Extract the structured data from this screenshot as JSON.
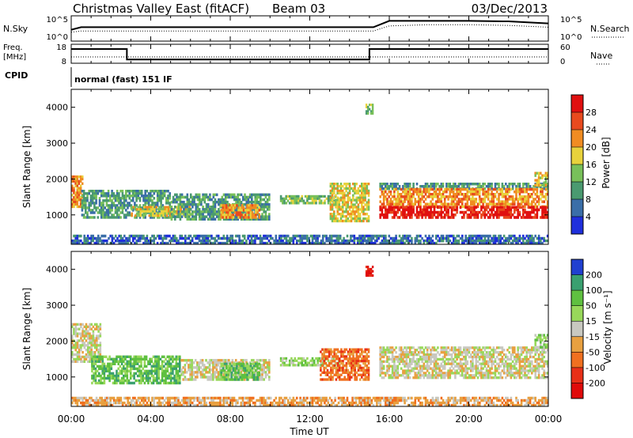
{
  "header": {
    "title": "Christmas Valley East (fitACF)",
    "beam": "Beam 03",
    "date": "03/Dec/2013"
  },
  "labels": {
    "nsky": "N.Sky",
    "nsearch": "N.Search",
    "freq_line1": "Freq.",
    "freq_line2": "[MHz]",
    "nave": "Nave",
    "cpid": "CPID",
    "cpid_value": "normal (fast) 151 IF",
    "xlabel": "Time UT"
  },
  "ticks": {
    "x": [
      "00:00",
      "04:00",
      "08:00",
      "12:00",
      "16:00",
      "20:00",
      "00:00"
    ],
    "noise_left": [
      "10^5",
      "10^0"
    ],
    "noise_right": [
      "10^5",
      "10^0"
    ],
    "freq_left": [
      "18",
      "8"
    ],
    "freq_right": [
      "60",
      "0"
    ],
    "range": [
      "1000",
      "2000",
      "3000",
      "4000"
    ]
  },
  "chart_data": [
    {
      "type": "line",
      "name": "noise",
      "x_hours": [
        0,
        0.5,
        3,
        6,
        9,
        12,
        14,
        15.2,
        16,
        18,
        20,
        22,
        24
      ],
      "nsky_level": [
        0.45,
        0.55,
        0.55,
        0.55,
        0.55,
        0.55,
        0.55,
        0.55,
        0.8,
        0.8,
        0.8,
        0.78,
        0.7
      ],
      "nsearch_level": [
        0.35,
        0.4,
        0.4,
        0.4,
        0.4,
        0.4,
        0.4,
        0.4,
        0.6,
        0.65,
        0.65,
        0.62,
        0.55
      ]
    },
    {
      "type": "line",
      "name": "frequency",
      "x_hours": [
        0,
        2.8,
        2.8,
        15,
        15,
        24
      ],
      "freq_mhz": [
        15.5,
        15.5,
        10,
        10,
        15.5,
        15.5
      ],
      "nave": [
        20,
        20,
        20,
        20,
        20,
        20
      ]
    },
    {
      "type": "heatmap",
      "panel": "power",
      "ylabel": "Slant Range [km]",
      "ylim": [
        180,
        4500
      ],
      "xlim": [
        0,
        24
      ],
      "colorbar_label": "Power [dB]",
      "colorbar_ticks": [
        "4",
        "8",
        "12",
        "16",
        "20",
        "24",
        "28"
      ],
      "colors": [
        "#1f2fdc",
        "#3a6ea8",
        "#4a9a70",
        "#78c05a",
        "#e8d23c",
        "#f08c22",
        "#e84a1e",
        "#e01010"
      ],
      "regions": [
        {
          "x0": 0,
          "x1": 0.6,
          "r0": 1200,
          "r1": 2100,
          "level": 5
        },
        {
          "x0": 0.5,
          "x1": 5,
          "r0": 900,
          "r1": 1700,
          "level": 2
        },
        {
          "x0": 3,
          "x1": 6,
          "r0": 950,
          "r1": 1250,
          "level": 4
        },
        {
          "x0": 5,
          "x1": 10,
          "r0": 850,
          "r1": 1600,
          "level": 2
        },
        {
          "x0": 7.5,
          "x1": 9.5,
          "r0": 900,
          "r1": 1300,
          "level": 5
        },
        {
          "x0": 10.5,
          "x1": 13.5,
          "r0": 1300,
          "r1": 1550,
          "level": 3
        },
        {
          "x0": 13,
          "x1": 15,
          "r0": 800,
          "r1": 1900,
          "level": 4
        },
        {
          "x0": 15.5,
          "x1": 24,
          "r0": 1700,
          "r1": 1900,
          "level": 2
        },
        {
          "x0": 15.5,
          "x1": 24,
          "r0": 1200,
          "r1": 1750,
          "level": 5
        },
        {
          "x0": 15.5,
          "x1": 24,
          "r0": 900,
          "r1": 1250,
          "level": 7
        },
        {
          "x0": 0,
          "x1": 24,
          "r0": 180,
          "r1": 450,
          "level": 1
        },
        {
          "x0": 14.8,
          "x1": 15.2,
          "r0": 3800,
          "r1": 4100,
          "level": 3
        },
        {
          "x0": 23.3,
          "x1": 24,
          "r0": 1800,
          "r1": 2200,
          "level": 4
        }
      ]
    },
    {
      "type": "heatmap",
      "panel": "velocity",
      "ylabel": "Slant Range [km]",
      "ylim": [
        180,
        4500
      ],
      "xlim": [
        0,
        24
      ],
      "colorbar_label": "Velocity [m s⁻¹]",
      "colorbar_ticks": [
        "200",
        "100",
        "50",
        "15",
        "-15",
        "-50",
        "-100",
        "-200"
      ],
      "colors": [
        "#2040d0",
        "#3aa070",
        "#5fc040",
        "#98d85a",
        "#c8c8c0",
        "#e8a040",
        "#f07020",
        "#e83018",
        "#e00a0a"
      ],
      "regions": [
        {
          "x0": 0,
          "x1": 1.5,
          "r0": 1400,
          "r1": 2500,
          "level": 4
        },
        {
          "x0": 1,
          "x1": 5.5,
          "r0": 800,
          "r1": 1600,
          "level": 2
        },
        {
          "x0": 5.5,
          "x1": 10,
          "r0": 900,
          "r1": 1500,
          "level": 4
        },
        {
          "x0": 7.5,
          "x1": 9.5,
          "r0": 900,
          "r1": 1400,
          "level": 2
        },
        {
          "x0": 10.5,
          "x1": 13.5,
          "r0": 1300,
          "r1": 1550,
          "level": 3
        },
        {
          "x0": 12.5,
          "x1": 15,
          "r0": 900,
          "r1": 1800,
          "level": 6
        },
        {
          "x0": 15.5,
          "x1": 24,
          "r0": 950,
          "r1": 1850,
          "level": 4
        },
        {
          "x0": 0,
          "x1": 24,
          "r0": 180,
          "r1": 450,
          "level": 5
        },
        {
          "x0": 14.8,
          "x1": 15.2,
          "r0": 3800,
          "r1": 4100,
          "level": 8
        },
        {
          "x0": 23.3,
          "x1": 24,
          "r0": 1800,
          "r1": 2200,
          "level": 3
        }
      ]
    }
  ],
  "colors": {
    "axis": "#000000"
  }
}
